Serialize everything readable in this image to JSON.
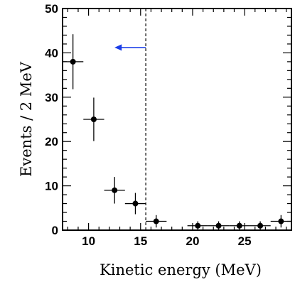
{
  "chart_data": {
    "type": "scatter",
    "title": "",
    "xlabel": "Kinetic energy (MeV)",
    "ylabel": "Events / 2 MeV",
    "xlim": [
      7.5,
      29.5
    ],
    "ylim": [
      0,
      50
    ],
    "x_ticks": [
      10,
      15,
      20,
      25
    ],
    "y_ticks": [
      0,
      10,
      20,
      30,
      40,
      50
    ],
    "series": [
      {
        "x": [
          8.5,
          10.5,
          12.5,
          14.5,
          16.5,
          20.5,
          22.5,
          24.5,
          26.5,
          28.5
        ],
        "y": [
          38,
          25,
          9,
          6,
          2,
          1,
          1,
          1,
          1,
          2
        ],
        "x_err": 1,
        "y_err_low": [
          6.2,
          4.9,
          3.0,
          2.4,
          1.4,
          1.0,
          1.0,
          1.0,
          1.0,
          1.4
        ],
        "y_err_high": [
          6.2,
          4.9,
          3.0,
          2.4,
          1.4,
          1.0,
          1.0,
          1.0,
          1.0,
          1.4
        ]
      }
    ],
    "cut_line": {
      "x": 15.5,
      "style": "dashed"
    },
    "arrow": {
      "y": 41.2,
      "x_from": 15.5,
      "x_to": 12.5,
      "direction": "left",
      "color": "#1a3de8"
    },
    "grid": false,
    "legend": "none"
  }
}
